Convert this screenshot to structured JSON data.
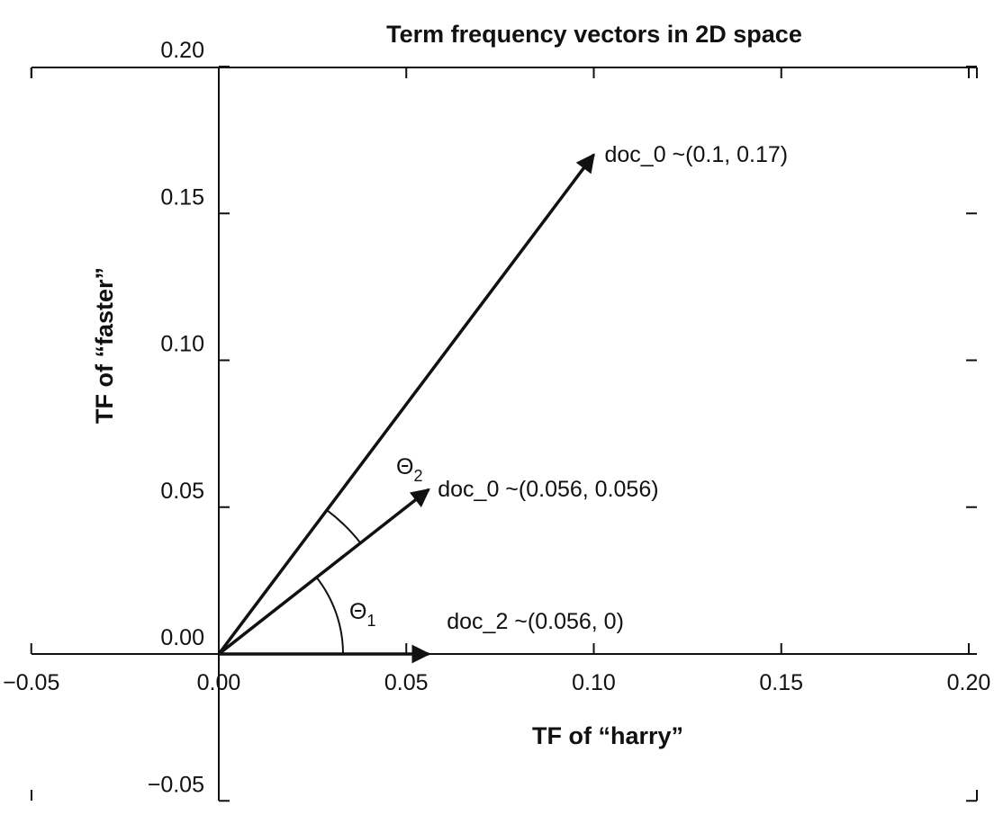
{
  "chart_data": {
    "type": "vector-plot",
    "title": "Term frequency vectors in 2D space",
    "xlabel": "TF of “harry”",
    "ylabel": "TF of “faster”",
    "xlim": [
      -0.05,
      0.2
    ],
    "ylim": [
      -0.05,
      0.2
    ],
    "x_ticks": [
      -0.05,
      0.0,
      0.05,
      0.1,
      0.15,
      0.2
    ],
    "y_ticks": [
      -0.05,
      0.0,
      0.05,
      0.1,
      0.15,
      0.2
    ],
    "x_tick_labels": [
      "−0.05",
      "0.00",
      "0.05",
      "0.10",
      "0.15",
      "0.20"
    ],
    "y_tick_labels": [
      "−0.05",
      "0.00",
      "0.05",
      "0.10",
      "0.15",
      "0.20"
    ],
    "grid": false,
    "vectors": [
      {
        "label": "doc_0 ~(0.1, 0.17)",
        "x": 0.1,
        "y": 0.17
      },
      {
        "label": "doc_0 ~(0.056, 0.056)",
        "x": 0.056,
        "y": 0.056
      },
      {
        "label": "doc_2 ~(0.056, 0)",
        "x": 0.056,
        "y": 0.0
      }
    ],
    "angles": [
      {
        "symbol": "Θ",
        "subscript": "1"
      },
      {
        "symbol": "Θ",
        "subscript": "2"
      }
    ],
    "colors": {
      "ink": "#111111",
      "background": "#ffffff"
    }
  }
}
